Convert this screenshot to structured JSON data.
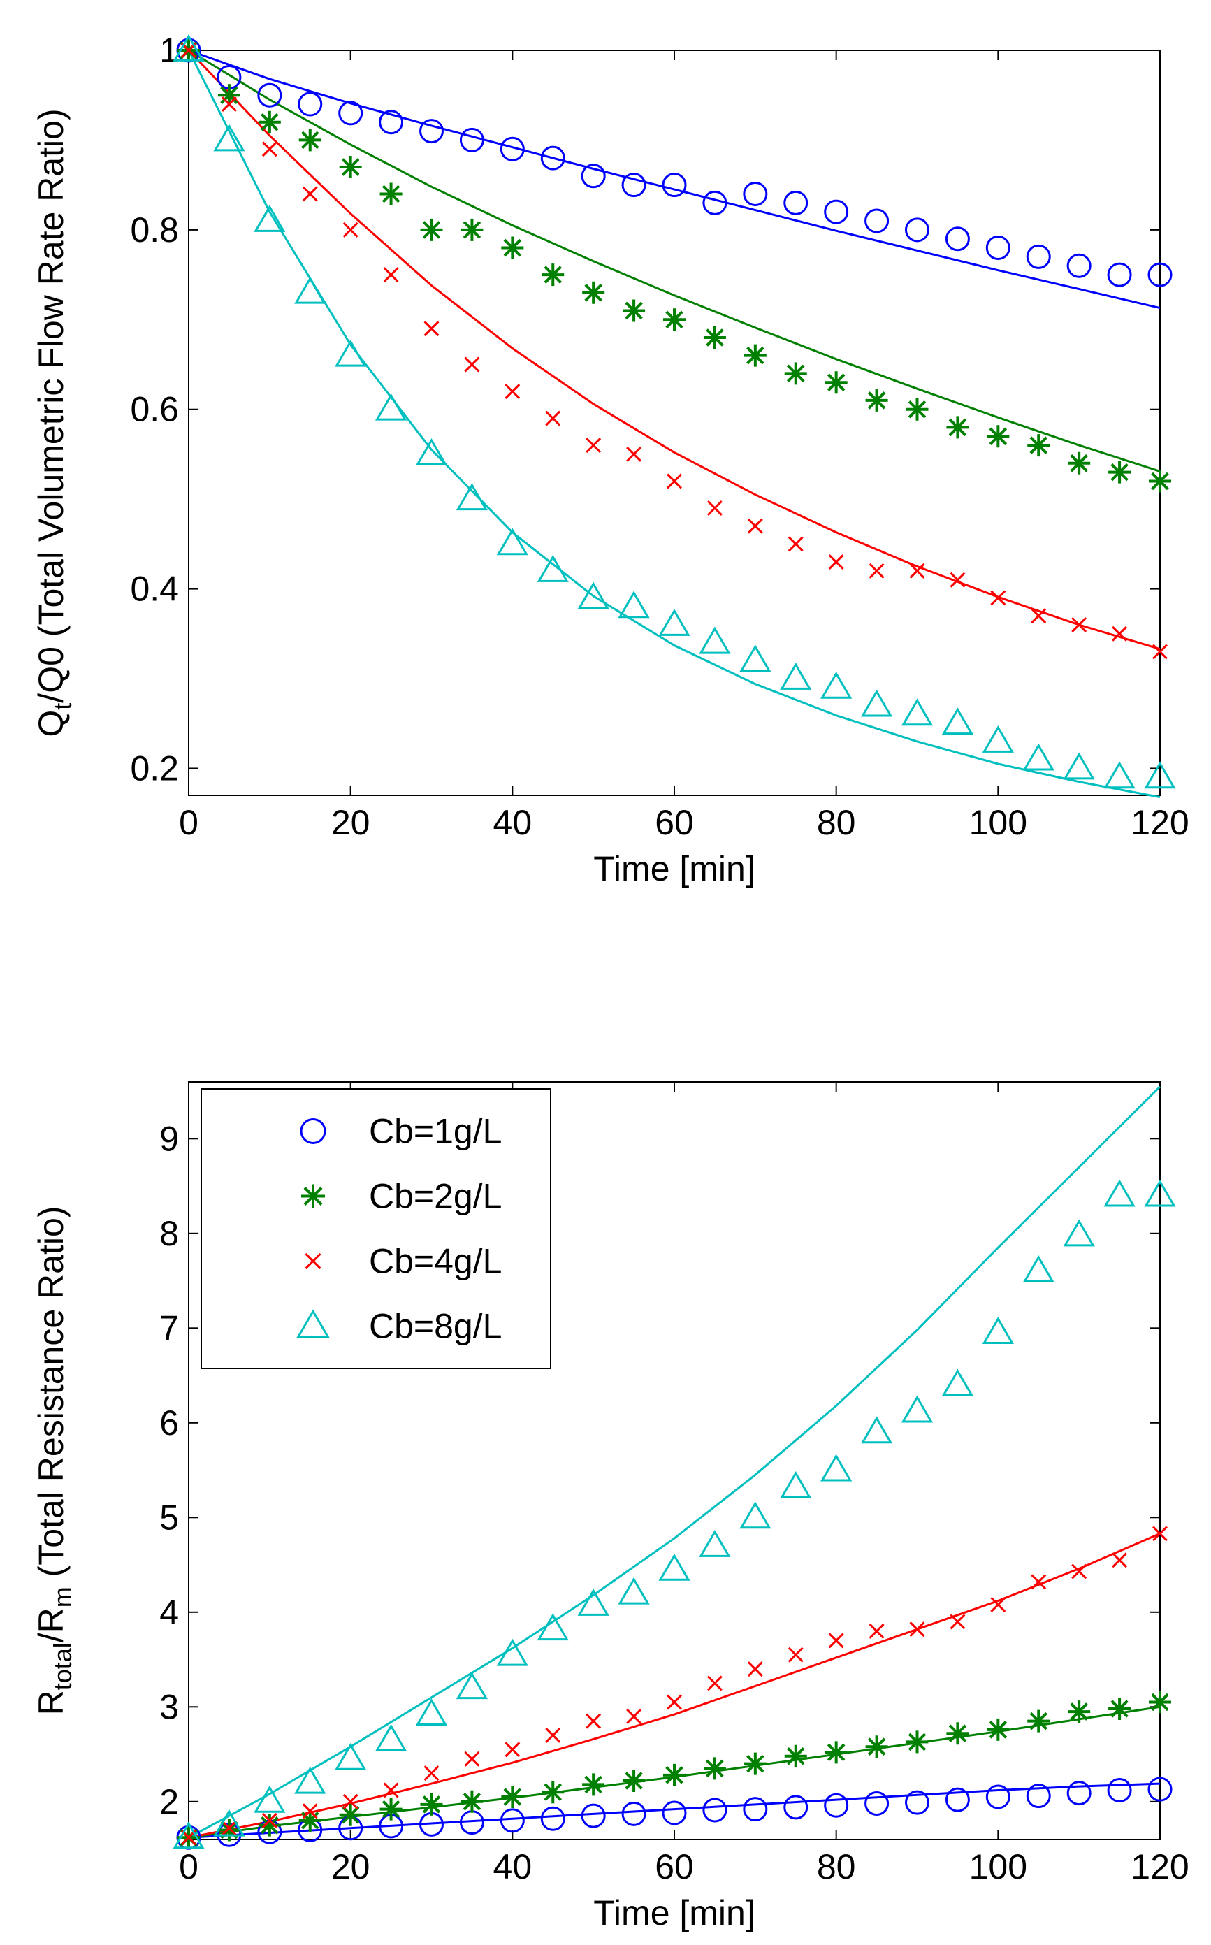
{
  "chart_data": [
    {
      "type": "line",
      "title": "",
      "xlabel": "Time [min]",
      "ylabel_parts": [
        {
          "text": "Q",
          "sub": false
        },
        {
          "text": "t",
          "sub": true
        },
        {
          "text": "/Q0 (Total Volumetric Flow Rate Ratio)",
          "sub": false
        }
      ],
      "xlim": [
        0,
        120
      ],
      "ylim": [
        0.17,
        1.0
      ],
      "xticks": [
        0,
        20,
        40,
        60,
        80,
        100,
        120
      ],
      "xtick_labels": [
        "0",
        "20",
        "40",
        "60",
        "80",
        "100",
        "120"
      ],
      "yticks": [
        0.2,
        0.4,
        0.6,
        0.8,
        1.0
      ],
      "ytick_labels": [
        "0.2",
        "0.4",
        "0.6",
        "0.8",
        "1"
      ],
      "grid": false,
      "legend": null,
      "series": [
        {
          "id": "cb1",
          "color": "#0000ff",
          "marker": "circle",
          "points_x": [
            0,
            5,
            10,
            15,
            20,
            25,
            30,
            35,
            40,
            45,
            50,
            55,
            60,
            65,
            70,
            75,
            80,
            85,
            90,
            95,
            100,
            105,
            110,
            115,
            120
          ],
          "points_y": [
            1.0,
            0.97,
            0.95,
            0.94,
            0.93,
            0.92,
            0.91,
            0.9,
            0.89,
            0.88,
            0.86,
            0.85,
            0.85,
            0.83,
            0.84,
            0.83,
            0.82,
            0.81,
            0.8,
            0.79,
            0.78,
            0.77,
            0.76,
            0.75,
            0.75
          ],
          "line_x": [
            0,
            10,
            20,
            30,
            40,
            50,
            60,
            70,
            80,
            90,
            100,
            110,
            120
          ],
          "line_y": [
            1.0,
            0.968,
            0.941,
            0.916,
            0.892,
            0.868,
            0.845,
            0.822,
            0.799,
            0.777,
            0.755,
            0.734,
            0.713
          ]
        },
        {
          "id": "cb2",
          "color": "#008000",
          "marker": "asterisk",
          "points_x": [
            0,
            5,
            10,
            15,
            20,
            25,
            30,
            35,
            40,
            45,
            50,
            55,
            60,
            65,
            70,
            75,
            80,
            85,
            90,
            95,
            100,
            105,
            110,
            115,
            120
          ],
          "points_y": [
            1.0,
            0.95,
            0.92,
            0.9,
            0.87,
            0.84,
            0.8,
            0.8,
            0.78,
            0.75,
            0.73,
            0.71,
            0.7,
            0.68,
            0.66,
            0.64,
            0.63,
            0.61,
            0.6,
            0.58,
            0.57,
            0.56,
            0.54,
            0.53,
            0.52
          ],
          "line_x": [
            0,
            10,
            20,
            30,
            40,
            50,
            60,
            70,
            80,
            90,
            100,
            110,
            120
          ],
          "line_y": [
            1.0,
            0.945,
            0.895,
            0.848,
            0.805,
            0.765,
            0.727,
            0.691,
            0.656,
            0.623,
            0.591,
            0.56,
            0.531
          ]
        },
        {
          "id": "cb4",
          "color": "#ff0000",
          "marker": "cross",
          "points_x": [
            0,
            5,
            10,
            15,
            20,
            25,
            30,
            35,
            40,
            45,
            50,
            55,
            60,
            65,
            70,
            75,
            80,
            85,
            90,
            95,
            100,
            105,
            110,
            115,
            120
          ],
          "points_y": [
            1.0,
            0.94,
            0.89,
            0.84,
            0.8,
            0.75,
            0.69,
            0.65,
            0.62,
            0.59,
            0.56,
            0.55,
            0.52,
            0.49,
            0.47,
            0.45,
            0.43,
            0.42,
            0.42,
            0.41,
            0.39,
            0.37,
            0.36,
            0.35,
            0.33
          ],
          "line_x": [
            0,
            10,
            20,
            30,
            40,
            50,
            60,
            70,
            80,
            90,
            100,
            110,
            120
          ],
          "line_y": [
            1.0,
            0.905,
            0.818,
            0.738,
            0.668,
            0.606,
            0.552,
            0.505,
            0.463,
            0.425,
            0.391,
            0.36,
            0.333
          ]
        },
        {
          "id": "cb8",
          "color": "#00bfbf",
          "marker": "triangle",
          "points_x": [
            0,
            5,
            10,
            15,
            20,
            25,
            30,
            35,
            40,
            45,
            50,
            55,
            60,
            65,
            70,
            75,
            80,
            85,
            90,
            95,
            100,
            105,
            110,
            115,
            120
          ],
          "points_y": [
            1.0,
            0.9,
            0.81,
            0.73,
            0.66,
            0.6,
            0.55,
            0.5,
            0.45,
            0.42,
            0.39,
            0.38,
            0.36,
            0.34,
            0.32,
            0.3,
            0.29,
            0.27,
            0.26,
            0.25,
            0.23,
            0.21,
            0.2,
            0.19,
            0.19
          ],
          "line_x": [
            0,
            10,
            20,
            30,
            40,
            50,
            60,
            70,
            80,
            90,
            100,
            110,
            120
          ],
          "line_y": [
            1.0,
            0.82,
            0.672,
            0.555,
            0.463,
            0.392,
            0.337,
            0.294,
            0.259,
            0.23,
            0.205,
            0.185,
            0.168
          ]
        }
      ]
    },
    {
      "type": "line",
      "title": "",
      "xlabel": "Time [min]",
      "ylabel_parts": [
        {
          "text": "R",
          "sub": false
        },
        {
          "text": "total",
          "sub": true
        },
        {
          "text": "/R",
          "sub": false
        },
        {
          "text": "m",
          "sub": true
        },
        {
          "text": " (Total Resistance Ratio)",
          "sub": false
        }
      ],
      "xlim": [
        0,
        120
      ],
      "ylim": [
        1.6,
        9.6
      ],
      "xticks": [
        0,
        20,
        40,
        60,
        80,
        100,
        120
      ],
      "xtick_labels": [
        "0",
        "20",
        "40",
        "60",
        "80",
        "100",
        "120"
      ],
      "yticks": [
        2,
        3,
        4,
        5,
        6,
        7,
        8,
        9
      ],
      "ytick_labels": [
        "2",
        "3",
        "4",
        "5",
        "6",
        "7",
        "8",
        "9"
      ],
      "grid": false,
      "legend": {
        "placement": "top-left",
        "entries": [
          {
            "series": "cb1",
            "label": "Cb=1g/L"
          },
          {
            "series": "cb2",
            "label": "Cb=2g/L"
          },
          {
            "series": "cb4",
            "label": "Cb=4g/L"
          },
          {
            "series": "cb8",
            "label": "Cb=8g/L"
          }
        ]
      },
      "series": [
        {
          "id": "cb1",
          "color": "#0000ff",
          "marker": "circle",
          "points_x": [
            0,
            5,
            10,
            15,
            20,
            25,
            30,
            35,
            40,
            45,
            50,
            55,
            60,
            65,
            70,
            75,
            80,
            85,
            90,
            95,
            100,
            105,
            110,
            115,
            120
          ],
          "points_y": [
            1.62,
            1.65,
            1.68,
            1.7,
            1.72,
            1.74,
            1.76,
            1.78,
            1.8,
            1.82,
            1.85,
            1.87,
            1.88,
            1.91,
            1.92,
            1.94,
            1.96,
            1.98,
            1.99,
            2.02,
            2.05,
            2.06,
            2.09,
            2.12,
            2.13
          ],
          "line_x": [
            0,
            10,
            20,
            30,
            40,
            50,
            60,
            70,
            80,
            90,
            100,
            110,
            120
          ],
          "line_y": [
            1.62,
            1.67,
            1.72,
            1.77,
            1.82,
            1.87,
            1.92,
            1.97,
            2.02,
            2.07,
            2.12,
            2.16,
            2.19
          ]
        },
        {
          "id": "cb2",
          "color": "#008000",
          "marker": "asterisk",
          "points_x": [
            0,
            5,
            10,
            15,
            20,
            25,
            30,
            35,
            40,
            45,
            50,
            55,
            60,
            65,
            70,
            75,
            80,
            85,
            90,
            95,
            100,
            105,
            110,
            115,
            120
          ],
          "points_y": [
            1.62,
            1.7,
            1.75,
            1.8,
            1.86,
            1.92,
            1.97,
            2.0,
            2.05,
            2.1,
            2.18,
            2.22,
            2.28,
            2.35,
            2.4,
            2.48,
            2.52,
            2.58,
            2.63,
            2.72,
            2.76,
            2.85,
            2.95,
            2.98,
            3.05
          ],
          "line_x": [
            0,
            10,
            20,
            30,
            40,
            50,
            60,
            70,
            80,
            90,
            100,
            110,
            120
          ],
          "line_y": [
            1.62,
            1.74,
            1.84,
            1.94,
            2.04,
            2.15,
            2.26,
            2.38,
            2.5,
            2.62,
            2.74,
            2.87,
            3.0
          ]
        },
        {
          "id": "cb4",
          "color": "#ff0000",
          "marker": "cross",
          "points_x": [
            0,
            5,
            10,
            15,
            20,
            25,
            30,
            35,
            40,
            45,
            50,
            55,
            60,
            65,
            70,
            75,
            80,
            85,
            90,
            95,
            100,
            105,
            110,
            115,
            120
          ],
          "points_y": [
            1.62,
            1.72,
            1.8,
            1.9,
            2.0,
            2.12,
            2.3,
            2.45,
            2.55,
            2.7,
            2.85,
            2.9,
            3.05,
            3.25,
            3.4,
            3.55,
            3.7,
            3.8,
            3.82,
            3.9,
            4.08,
            4.32,
            4.43,
            4.55,
            4.83
          ],
          "line_x": [
            0,
            10,
            20,
            30,
            40,
            50,
            60,
            70,
            80,
            90,
            100,
            110,
            120
          ],
          "line_y": [
            1.62,
            1.79,
            1.98,
            2.19,
            2.41,
            2.66,
            2.92,
            3.22,
            3.52,
            3.82,
            4.12,
            4.46,
            4.83
          ]
        },
        {
          "id": "cb8",
          "color": "#00bfbf",
          "marker": "triangle",
          "points_x": [
            0,
            5,
            10,
            15,
            20,
            25,
            30,
            35,
            40,
            45,
            50,
            55,
            60,
            65,
            70,
            75,
            80,
            85,
            90,
            95,
            100,
            105,
            110,
            115,
            120
          ],
          "points_y": [
            1.62,
            1.75,
            2.0,
            2.2,
            2.45,
            2.65,
            2.92,
            3.2,
            3.55,
            3.82,
            4.08,
            4.2,
            4.45,
            4.7,
            5.0,
            5.32,
            5.5,
            5.9,
            6.12,
            6.4,
            6.95,
            7.6,
            7.98,
            8.4,
            8.4
          ],
          "line_x": [
            0,
            10,
            20,
            30,
            40,
            50,
            60,
            70,
            80,
            90,
            100,
            110,
            120
          ],
          "line_y": [
            1.62,
            2.08,
            2.58,
            3.1,
            3.62,
            4.18,
            4.78,
            5.45,
            6.18,
            6.98,
            7.85,
            8.7,
            9.55
          ]
        }
      ]
    }
  ]
}
